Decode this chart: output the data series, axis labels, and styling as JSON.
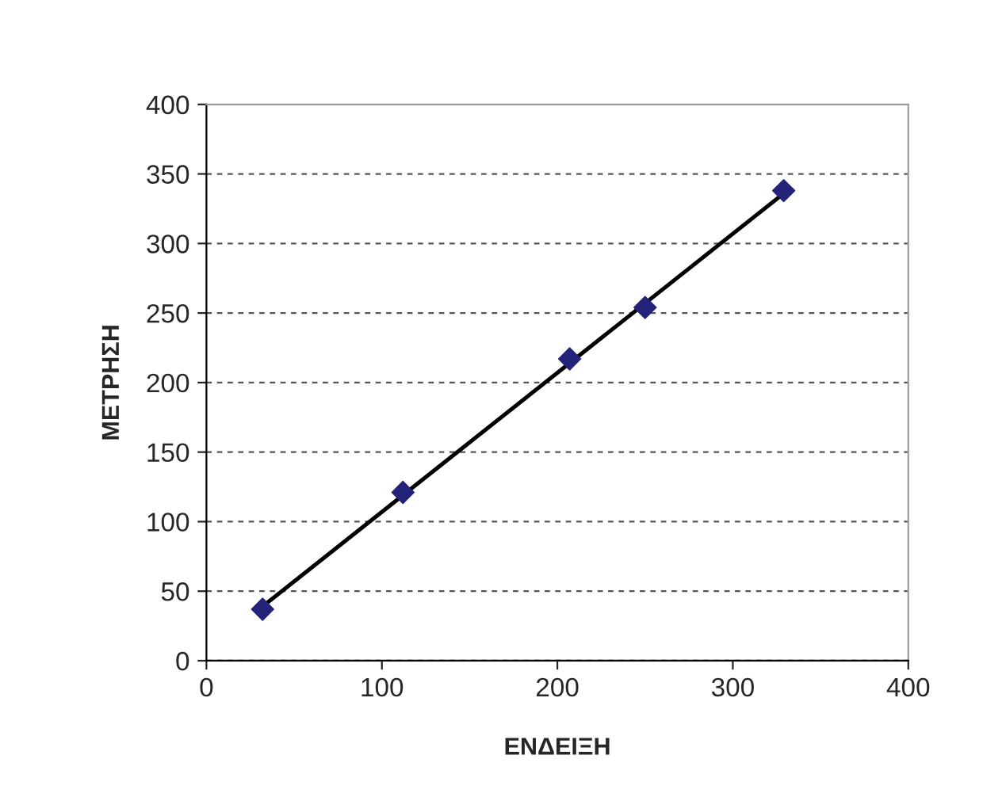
{
  "chart_data": {
    "type": "scatter",
    "xlabel": "ΕΝΔΕΙΞΗ",
    "ylabel": "ΜΕΤΡΗΣΗ",
    "series": [
      {
        "color": "#23237a",
        "x": [
          32,
          112,
          207,
          250,
          329
        ],
        "values": [
          37,
          121,
          217,
          254,
          338
        ],
        "marker": "diamond"
      },
      {
        "type": "line",
        "color": "#000000",
        "x": [
          32,
          329
        ],
        "values": [
          39,
          336
        ],
        "marker": "none",
        "line_style": "solid"
      }
    ],
    "xlim": [
      0,
      400
    ],
    "ylim": [
      0,
      400
    ],
    "xticks": [
      0,
      100,
      200,
      300,
      400
    ],
    "yticks": [
      0,
      50,
      100,
      150,
      200,
      250,
      300,
      350,
      400
    ],
    "grid": "y",
    "legend": false
  }
}
